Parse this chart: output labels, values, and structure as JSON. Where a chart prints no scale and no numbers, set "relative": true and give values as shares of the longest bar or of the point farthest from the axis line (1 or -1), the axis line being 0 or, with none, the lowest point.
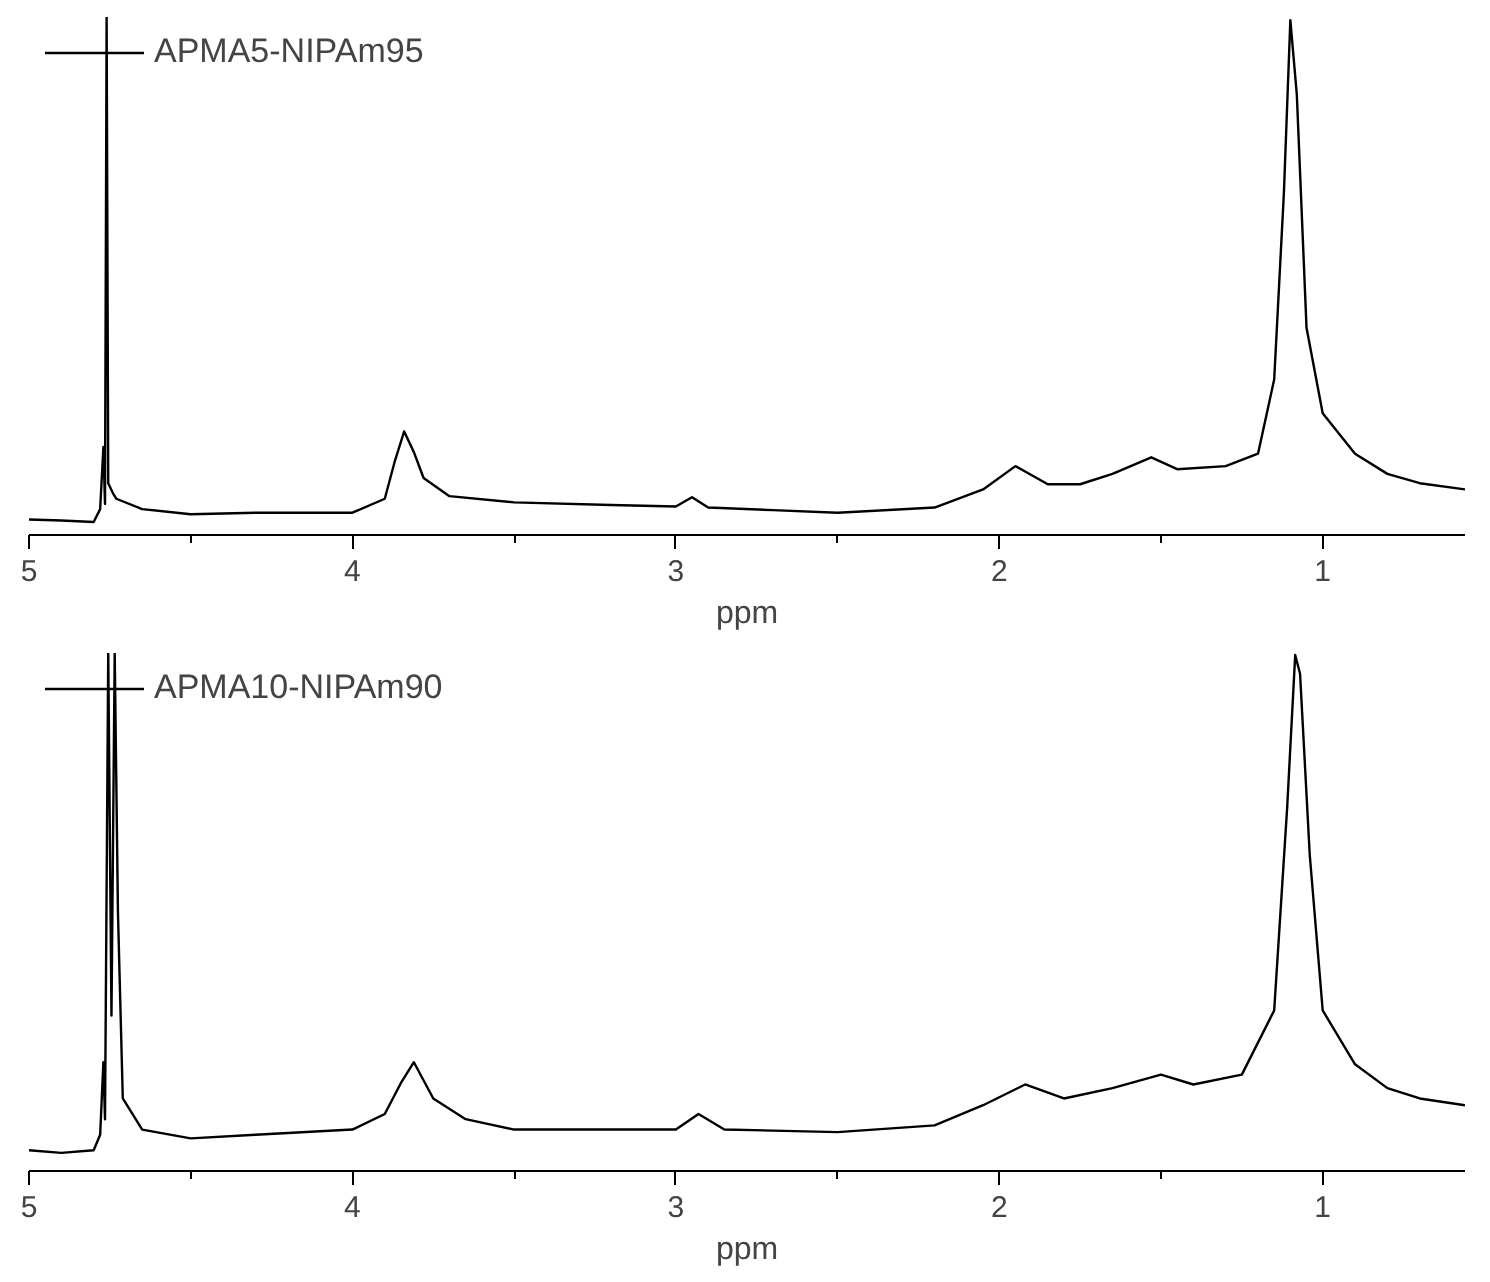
{
  "chart_data": [
    {
      "type": "line",
      "relative": true,
      "xlabel": "ppm",
      "xlim": [
        5,
        0.56
      ],
      "xticks": [
        5,
        {
          "value": 4.5,
          "label": null
        },
        4,
        {
          "value": 3.5,
          "label": null
        },
        3,
        {
          "value": 2.5,
          "label": null
        },
        2,
        {
          "value": 1.5,
          "label": null
        },
        1
      ],
      "grid": false,
      "legend": "top left",
      "marker": "none",
      "line_style": "solid",
      "x": [
        5.0,
        4.9,
        4.8,
        4.78,
        4.77,
        4.765,
        4.76,
        4.755,
        4.74,
        4.73,
        4.65,
        4.5,
        4.3,
        4.0,
        3.9,
        3.87,
        3.84,
        3.81,
        3.78,
        3.7,
        3.5,
        3.2,
        3.0,
        2.95,
        2.9,
        2.7,
        2.5,
        2.2,
        2.05,
        1.95,
        1.85,
        1.75,
        1.65,
        1.53,
        1.45,
        1.3,
        1.2,
        1.15,
        1.12,
        1.1,
        1.08,
        1.05,
        1.0,
        0.9,
        0.8,
        0.7,
        0.56
      ],
      "series": [
        {
          "name": "APMA5-NIPAm95",
          "color": "#000000",
          "values": [
            0.03,
            0.028,
            0.025,
            0.05,
            0.17,
            0.06,
            1.0,
            0.1,
            0.08,
            0.07,
            0.05,
            0.04,
            0.043,
            0.043,
            0.07,
            0.14,
            0.2,
            0.16,
            0.11,
            0.075,
            0.063,
            0.058,
            0.055,
            0.073,
            0.053,
            0.048,
            0.043,
            0.053,
            0.088,
            0.133,
            0.098,
            0.098,
            0.118,
            0.15,
            0.127,
            0.133,
            0.157,
            0.3,
            0.66,
            0.994,
            0.85,
            0.4,
            0.235,
            0.157,
            0.118,
            0.1,
            0.088
          ]
        }
      ]
    },
    {
      "type": "line",
      "relative": true,
      "xlabel": "ppm",
      "xlim": [
        5,
        0.56
      ],
      "xticks": [
        5,
        {
          "value": 4.5,
          "label": null
        },
        4,
        {
          "value": 3.5,
          "label": null
        },
        3,
        {
          "value": 2.5,
          "label": null
        },
        2,
        {
          "value": 1.5,
          "label": null
        },
        1
      ],
      "grid": false,
      "legend": "top left",
      "marker": "none",
      "line_style": "solid",
      "x": [
        5.0,
        4.9,
        4.8,
        4.78,
        4.77,
        4.765,
        4.755,
        4.745,
        4.735,
        4.725,
        4.71,
        4.65,
        4.5,
        4.3,
        4.0,
        3.9,
        3.85,
        3.81,
        3.75,
        3.65,
        3.5,
        3.2,
        3.0,
        2.93,
        2.85,
        2.7,
        2.5,
        2.2,
        2.05,
        1.92,
        1.8,
        1.65,
        1.5,
        1.4,
        1.25,
        1.15,
        1.11,
        1.085,
        1.07,
        1.04,
        1.0,
        0.9,
        0.8,
        0.7,
        0.56
      ],
      "series": [
        {
          "name": "APMA10-NIPAm90",
          "color": "#000000",
          "values": [
            0.04,
            0.035,
            0.04,
            0.07,
            0.21,
            0.1,
            1.0,
            0.3,
            1.0,
            0.5,
            0.14,
            0.08,
            0.063,
            0.07,
            0.08,
            0.11,
            0.17,
            0.21,
            0.14,
            0.1,
            0.08,
            0.08,
            0.08,
            0.11,
            0.08,
            0.078,
            0.075,
            0.088,
            0.127,
            0.167,
            0.14,
            0.16,
            0.186,
            0.167,
            0.186,
            0.31,
            0.7,
            0.996,
            0.96,
            0.61,
            0.31,
            0.206,
            0.16,
            0.14,
            0.127
          ]
        }
      ]
    }
  ]
}
